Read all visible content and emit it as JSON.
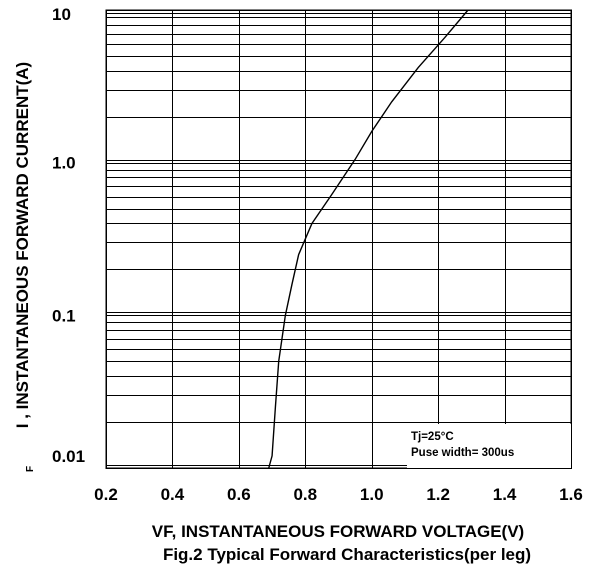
{
  "chart_data": {
    "type": "line",
    "title": "Fig.2 Typical Forward Characteristics(per leg)",
    "xlabel": "VF, INSTANTANEOUS FORWARD VOLTAGE(V)",
    "ylabel": "I , INSTANTANEOUS FORWARD CURRENT(A)",
    "ylabel_subscript": "F",
    "xlim": [
      0.2,
      1.6
    ],
    "ylim": [
      0.01,
      10
    ],
    "y_scale": "log",
    "x_ticks": [
      "0.2",
      "0.4",
      "0.6",
      "0.8",
      "1.0",
      "1.2",
      "1.4",
      "1.6"
    ],
    "x_tick_values": [
      0.2,
      0.4,
      0.6,
      0.8,
      1.0,
      1.2,
      1.4,
      1.6
    ],
    "y_ticks": [
      "0.01",
      "0.1",
      "1.0",
      "10"
    ],
    "y_tick_values": [
      0.01,
      0.1,
      1.0,
      10
    ],
    "grid": true,
    "annotations": [
      "Tj=25°C",
      "Puse width= 300us"
    ],
    "series": [
      {
        "x": [
          0.69,
          0.7,
          0.71,
          0.72,
          0.74,
          0.76,
          0.78,
          0.82,
          0.88,
          0.95,
          1.0,
          1.06,
          1.14,
          1.22,
          1.29
        ],
        "values": [
          0.007,
          0.012,
          0.025,
          0.05,
          0.1,
          0.16,
          0.25,
          0.4,
          0.62,
          1.05,
          1.6,
          2.5,
          4.2,
          6.6,
          10
        ]
      }
    ]
  }
}
